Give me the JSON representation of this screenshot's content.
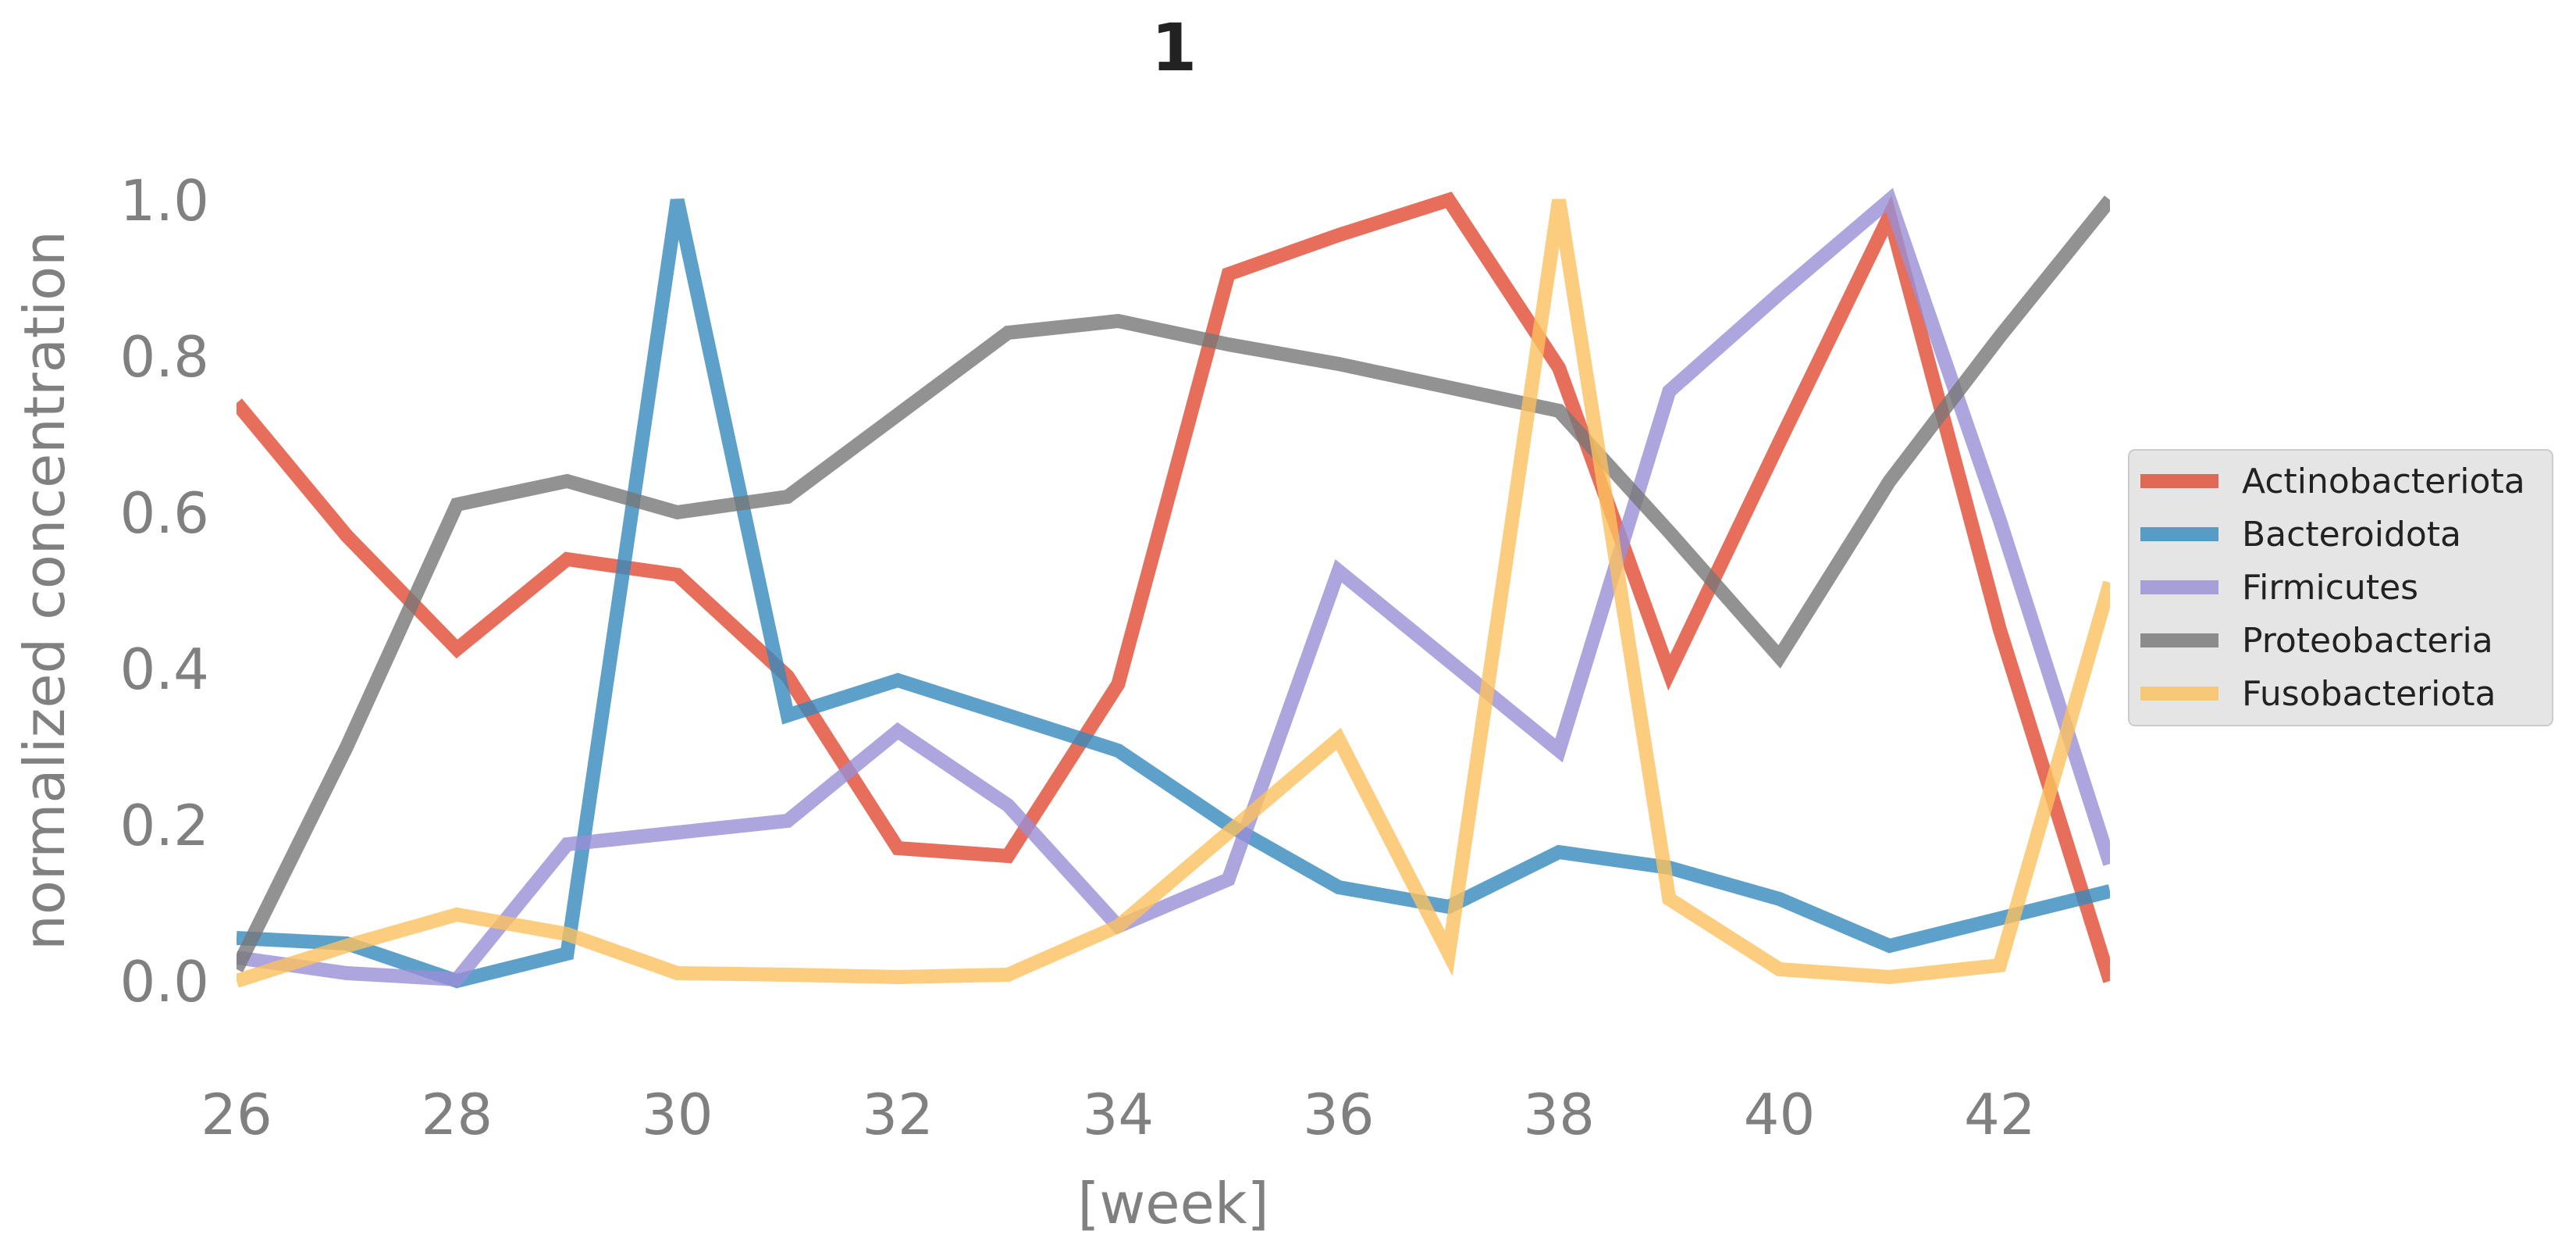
{
  "chart_data": {
    "type": "line",
    "title": "1",
    "xlabel": "[week]",
    "ylabel": "normalized concentration",
    "xlim": [
      26,
      43
    ],
    "ylim": [
      -0.13,
      1.09
    ],
    "x_ticks": [
      "26",
      "28",
      "30",
      "32",
      "34",
      "36",
      "38",
      "40",
      "42"
    ],
    "y_ticks": [
      "0.0",
      "0.2",
      "0.4",
      "0.6",
      "0.8",
      "1.0"
    ],
    "grid": false,
    "legend_position": "right",
    "x": [
      26,
      27,
      28,
      29,
      30,
      31,
      32,
      33,
      34,
      35,
      36,
      37,
      38,
      39,
      40,
      41,
      42,
      43
    ],
    "series": [
      {
        "name": "Actinobacteriota",
        "color": "#e24a33",
        "values": [
          0.74,
          0.57,
          0.425,
          0.54,
          0.52,
          0.39,
          0.17,
          0.16,
          0.38,
          0.905,
          0.955,
          1.0,
          0.785,
          0.395,
          0.69,
          0.98,
          0.45,
          0.0
        ]
      },
      {
        "name": "Bacteroidota",
        "color": "#348abd",
        "values": [
          0.055,
          0.048,
          0.0,
          0.035,
          1.0,
          0.34,
          0.385,
          0.34,
          0.295,
          0.2,
          0.12,
          0.095,
          0.165,
          0.145,
          0.105,
          0.045,
          0.08,
          0.115
        ]
      },
      {
        "name": "Firmicutes",
        "color": "#988ed5",
        "values": [
          0.03,
          0.01,
          0.002,
          0.175,
          0.19,
          0.205,
          0.32,
          0.225,
          0.07,
          0.13,
          0.525,
          0.41,
          0.295,
          0.755,
          0.88,
          1.0,
          0.59,
          0.15
        ]
      },
      {
        "name": "Proteobacteria",
        "color": "#777777",
        "values": [
          0.015,
          0.3,
          0.61,
          0.64,
          0.6,
          0.62,
          0.725,
          0.83,
          0.845,
          0.815,
          0.79,
          0.76,
          0.73,
          0.575,
          0.415,
          0.64,
          0.825,
          1.0
        ]
      },
      {
        "name": "Fusobacteriota",
        "color": "#fbc15e",
        "values": [
          0.0,
          0.045,
          0.085,
          0.06,
          0.01,
          0.008,
          0.005,
          0.008,
          0.07,
          0.19,
          0.31,
          0.035,
          1.0,
          0.105,
          0.015,
          0.005,
          0.02,
          0.51
        ]
      }
    ]
  }
}
